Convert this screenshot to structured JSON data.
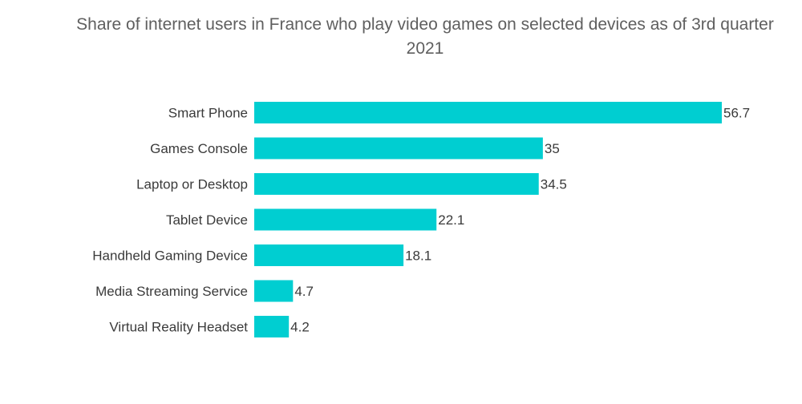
{
  "chart_data": {
    "type": "bar",
    "orientation": "horizontal",
    "title": "Share of internet users in France who play video games on selected devices as of 3rd quarter 2021",
    "xlabel": "",
    "ylabel": "",
    "categories": [
      "Smart Phone",
      "Games Console",
      "Laptop or Desktop",
      "Tablet Device",
      "Handheld Gaming Device",
      "Media Streaming Service",
      "Virtual Reality Headset"
    ],
    "values": [
      56.7,
      35,
      34.5,
      22.1,
      18.1,
      4.7,
      4.2
    ],
    "value_labels": [
      "56.7",
      "35",
      "34.5",
      "22.1",
      "18.1",
      "4.7",
      "4.2"
    ],
    "xlim": [
      0,
      56.7
    ],
    "grid": false,
    "legend": "none",
    "bar_color": "#00CED1"
  }
}
